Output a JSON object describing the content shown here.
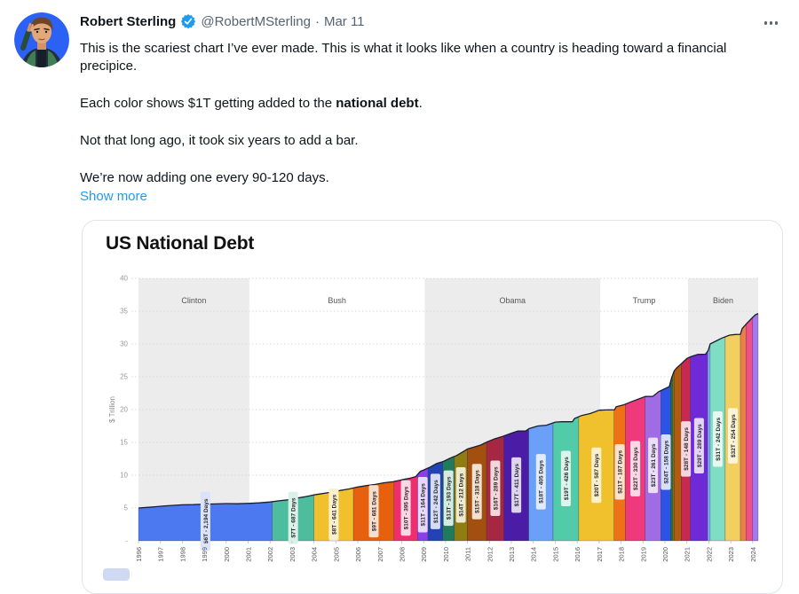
{
  "tweet": {
    "name": "Robert Sterling",
    "handle": "@RobertMSterling",
    "separator": "·",
    "date": "Mar 11",
    "paragraph1": "This is the scariest chart I’ve ever made. This is what it looks like when a country is heading toward a financial precipice.",
    "paragraph2_prefix": "Each color shows $1T getting added to the ",
    "paragraph2_bold": "national debt",
    "paragraph2_suffix": ".",
    "paragraph3": "Not that long ago, it took six years to add a bar.",
    "paragraph4": "We’re now adding one every 90-120 days.",
    "show_more": "Show more"
  },
  "colors": {
    "link": "#1d9bf0",
    "verified_badge": "#1d9bf0",
    "text_primary": "#0f1419",
    "text_secondary": "#536471",
    "card_border": "#e1e4e8",
    "era_band": "#ececec",
    "debt_line": "#1c1c30"
  },
  "chart_data": {
    "type": "area",
    "title": "US National Debt",
    "ylabel": "$ Trillion",
    "ylim": [
      0,
      40
    ],
    "grid": "dotted-horizontal",
    "y_ticks": [
      {
        "label": "40",
        "value": 40
      },
      {
        "label": "35",
        "value": 35
      },
      {
        "label": "30",
        "value": 30
      },
      {
        "label": "25",
        "value": 25
      },
      {
        "label": "20",
        "value": 20
      },
      {
        "label": "15",
        "value": 15
      },
      {
        "label": "10",
        "value": 10
      },
      {
        "label": "5",
        "value": 5
      },
      {
        "label": "-",
        "value": 0
      }
    ],
    "x_years": [
      1996,
      1997,
      1998,
      1999,
      2000,
      2001,
      2002,
      2003,
      2004,
      2005,
      2006,
      2007,
      2008,
      2009,
      2010,
      2011,
      2012,
      2013,
      2014,
      2015,
      2016,
      2017,
      2018,
      2019,
      2020,
      2021,
      2022,
      2023,
      2024
    ],
    "eras": [
      {
        "name": "Clinton",
        "start": 1996,
        "end": 2001.05,
        "shaded": true
      },
      {
        "name": "Bush",
        "start": 2001.05,
        "end": 2009.05,
        "shaded": false
      },
      {
        "name": "Obama",
        "start": 2009.05,
        "end": 2017.05,
        "shaded": true
      },
      {
        "name": "Trump",
        "start": 2017.05,
        "end": 2021.05,
        "shaded": false
      },
      {
        "name": "Biden",
        "start": 2021.05,
        "end": 2024.25,
        "shaded": true
      }
    ],
    "segments": [
      {
        "value": 6,
        "label": "$6T - 2,194 Days",
        "start": 1996.0,
        "end": 2002.1,
        "color": "#4c79f0",
        "tint": "#dbe3fb"
      },
      {
        "value": 7,
        "label": "$7T - 687 Days",
        "start": 2002.1,
        "end": 2004.0,
        "color": "#4dbd9e",
        "tint": "#daf1e9"
      },
      {
        "value": 8,
        "label": "$8T - 641 Days",
        "start": 2004.0,
        "end": 2005.8,
        "color": "#f0c12d",
        "tint": "#fbf0cd"
      },
      {
        "value": 9,
        "label": "$9T - 681 Days",
        "start": 2005.8,
        "end": 2007.65,
        "color": "#e7600e",
        "tint": "#fadecd"
      },
      {
        "value": 10,
        "label": "$10T - 395 Days",
        "start": 2007.65,
        "end": 2008.72,
        "color": "#ee2e6e",
        "tint": "#fcd7e3"
      },
      {
        "value": 11,
        "label": "$11T - 164 Days",
        "start": 2008.72,
        "end": 2009.2,
        "color": "#8a3fe8",
        "tint": "#e7d9fb"
      },
      {
        "value": 12,
        "label": "$12T - 242 Days",
        "start": 2009.2,
        "end": 2009.87,
        "color": "#2342b4",
        "tint": "#d5dcf3"
      },
      {
        "value": 13,
        "label": "$13T - 193 Days",
        "start": 2009.87,
        "end": 2010.4,
        "color": "#217a5c",
        "tint": "#d5ebe2"
      },
      {
        "value": 14,
        "label": "$14T - 212 Days",
        "start": 2010.4,
        "end": 2010.99,
        "color": "#8f7c12",
        "tint": "#eeead0"
      },
      {
        "value": 15,
        "label": "$15T - 318 Days",
        "start": 2010.99,
        "end": 2011.87,
        "color": "#a34f10",
        "tint": "#f2e1d0"
      },
      {
        "value": 16,
        "label": "$16T - 289 Days",
        "start": 2011.87,
        "end": 2012.66,
        "color": "#a52742",
        "tint": "#f2d6dc"
      },
      {
        "value": 17,
        "label": "$17T - 411 Days",
        "start": 2012.66,
        "end": 2013.79,
        "color": "#4b1da6",
        "tint": "#ded4f1"
      },
      {
        "value": 18,
        "label": "$18T - 405 Days",
        "start": 2013.79,
        "end": 2014.9,
        "color": "#6aa0f8",
        "tint": "#e1ebfd"
      },
      {
        "value": 19,
        "label": "$19T - 426 Days",
        "start": 2014.9,
        "end": 2016.07,
        "color": "#52cba8",
        "tint": "#dcf4ec"
      },
      {
        "value": 20,
        "label": "$20T - 587 Days",
        "start": 2016.07,
        "end": 2017.68,
        "color": "#f0c12d",
        "tint": "#fbf0cd"
      },
      {
        "value": 21,
        "label": "$21T - 187 Days",
        "start": 2017.68,
        "end": 2018.2,
        "color": "#ed7117",
        "tint": "#fbe3d0"
      },
      {
        "value": 22,
        "label": "$22T - 330 Days",
        "start": 2018.2,
        "end": 2019.1,
        "color": "#ee3a7c",
        "tint": "#fcd8e5"
      },
      {
        "value": 23,
        "label": "$23T - 261 Days",
        "start": 2019.1,
        "end": 2019.82,
        "color": "#a06ce4",
        "tint": "#eadef9"
      },
      {
        "value": 24,
        "label": "$24T - 158 Days",
        "start": 2019.82,
        "end": 2020.26,
        "color": "#2c53e8",
        "tint": "#d6defb"
      },
      {
        "value": 25,
        "label": null,
        "start": 2020.26,
        "end": 2020.34,
        "color": "#1e6e50",
        "tint": null
      },
      {
        "value": 26,
        "label": null,
        "start": 2020.34,
        "end": 2020.43,
        "color": "#7d6e10",
        "tint": null
      },
      {
        "value": 27,
        "label": null,
        "start": 2020.43,
        "end": 2020.75,
        "color": "#b05a12",
        "tint": null
      },
      {
        "value": 28,
        "label": "$28T - 148 Days",
        "start": 2020.75,
        "end": 2021.16,
        "color": "#c62a50",
        "tint": "#f6d5de"
      },
      {
        "value": 29,
        "label": "$29T - 289 Days",
        "start": 2021.16,
        "end": 2021.95,
        "color": "#6f2ad8",
        "tint": "#e4d5f8"
      },
      {
        "value": 30,
        "label": null,
        "start": 2021.95,
        "end": 2022.06,
        "color": "#7fb1f2",
        "tint": null
      },
      {
        "value": 31,
        "label": "$31T - 242 Days",
        "start": 2022.06,
        "end": 2022.75,
        "color": "#7eddc3",
        "tint": "#e5f8f1"
      },
      {
        "value": 32,
        "label": "$32T - 254 Days",
        "start": 2022.75,
        "end": 2023.44,
        "color": "#f3cf5e",
        "tint": "#fcf4d8"
      },
      {
        "value": 33,
        "label": null,
        "start": 2023.44,
        "end": 2023.7,
        "color": "#e98147",
        "tint": null
      },
      {
        "value": 34,
        "label": null,
        "start": 2023.7,
        "end": 2023.99,
        "color": "#ef4f8a",
        "tint": null
      },
      {
        "value": 35,
        "label": null,
        "start": 2023.99,
        "end": 2024.25,
        "color": "#a37aec",
        "tint": null
      }
    ],
    "curve": [
      [
        1996.0,
        5.0
      ],
      [
        1996.4,
        5.1
      ],
      [
        1996.8,
        5.2
      ],
      [
        1997.2,
        5.32
      ],
      [
        1997.6,
        5.4
      ],
      [
        1998.0,
        5.48
      ],
      [
        1998.5,
        5.52
      ],
      [
        1999.0,
        5.6
      ],
      [
        1999.5,
        5.62
      ],
      [
        2000.0,
        5.67
      ],
      [
        2000.5,
        5.65
      ],
      [
        2001.0,
        5.7
      ],
      [
        2001.5,
        5.78
      ],
      [
        2002.0,
        5.92
      ],
      [
        2002.4,
        6.1
      ],
      [
        2002.8,
        6.25
      ],
      [
        2003.2,
        6.5
      ],
      [
        2003.6,
        6.72
      ],
      [
        2004.0,
        7.0
      ],
      [
        2004.4,
        7.2
      ],
      [
        2004.8,
        7.42
      ],
      [
        2005.2,
        7.68
      ],
      [
        2005.6,
        7.9
      ],
      [
        2006.0,
        8.2
      ],
      [
        2006.4,
        8.42
      ],
      [
        2006.8,
        8.6
      ],
      [
        2007.2,
        8.85
      ],
      [
        2007.6,
        9.0
      ],
      [
        2008.0,
        9.3
      ],
      [
        2008.4,
        9.55
      ],
      [
        2008.65,
        9.8
      ],
      [
        2008.72,
        10.1
      ],
      [
        2008.85,
        10.6
      ],
      [
        2009.0,
        10.8
      ],
      [
        2009.3,
        11.25
      ],
      [
        2009.6,
        11.8
      ],
      [
        2009.9,
        12.1
      ],
      [
        2010.2,
        12.6
      ],
      [
        2010.5,
        13.0
      ],
      [
        2010.8,
        13.6
      ],
      [
        2011.0,
        14.0
      ],
      [
        2011.3,
        14.3
      ],
      [
        2011.6,
        14.6
      ],
      [
        2011.9,
        15.1
      ],
      [
        2012.2,
        15.5
      ],
      [
        2012.6,
        15.92
      ],
      [
        2013.0,
        16.4
      ],
      [
        2013.3,
        16.74
      ],
      [
        2013.65,
        16.75
      ],
      [
        2013.8,
        17.1
      ],
      [
        2014.2,
        17.5
      ],
      [
        2014.6,
        17.62
      ],
      [
        2015.0,
        18.1
      ],
      [
        2015.3,
        18.15
      ],
      [
        2015.78,
        18.15
      ],
      [
        2015.88,
        18.65
      ],
      [
        2016.2,
        19.1
      ],
      [
        2016.6,
        19.4
      ],
      [
        2017.0,
        19.9
      ],
      [
        2017.3,
        19.95
      ],
      [
        2017.7,
        19.97
      ],
      [
        2017.78,
        20.45
      ],
      [
        2018.1,
        20.7
      ],
      [
        2018.5,
        21.25
      ],
      [
        2018.9,
        21.75
      ],
      [
        2019.1,
        22.0
      ],
      [
        2019.45,
        22.02
      ],
      [
        2019.7,
        22.7
      ],
      [
        2020.0,
        23.2
      ],
      [
        2020.2,
        23.5
      ],
      [
        2020.3,
        24.8
      ],
      [
        2020.42,
        25.9
      ],
      [
        2020.55,
        26.4
      ],
      [
        2020.75,
        27.0
      ],
      [
        2021.0,
        27.8
      ],
      [
        2021.2,
        28.1
      ],
      [
        2021.5,
        28.4
      ],
      [
        2021.85,
        28.45
      ],
      [
        2021.97,
        29.0
      ],
      [
        2022.06,
        30.0
      ],
      [
        2022.3,
        30.4
      ],
      [
        2022.6,
        30.9
      ],
      [
        2022.95,
        31.35
      ],
      [
        2023.2,
        31.45
      ],
      [
        2023.44,
        31.47
      ],
      [
        2023.52,
        32.35
      ],
      [
        2023.75,
        33.2
      ],
      [
        2024.0,
        34.05
      ],
      [
        2024.12,
        34.45
      ],
      [
        2024.25,
        34.65
      ]
    ]
  }
}
